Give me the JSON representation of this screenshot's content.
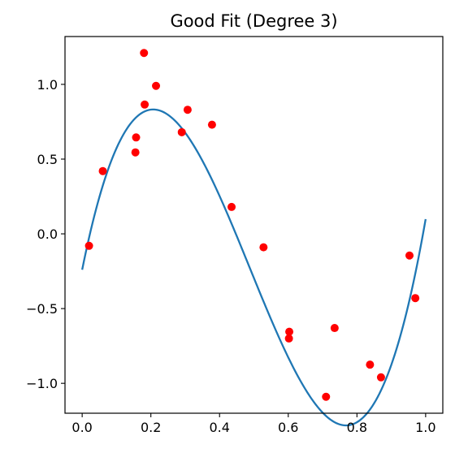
{
  "chart_data": {
    "type": "scatter",
    "title": "Good Fit (Degree 3)",
    "xlabel": "",
    "ylabel": "",
    "xlim": [
      -0.05,
      1.05
    ],
    "ylim": [
      -1.2,
      1.32
    ],
    "x_ticks": [
      0.0,
      0.2,
      0.4,
      0.6,
      0.8,
      1.0
    ],
    "x_tick_labels": [
      "0.0",
      "0.2",
      "0.4",
      "0.6",
      "0.8",
      "1.0"
    ],
    "y_ticks": [
      -1.0,
      -0.5,
      0.0,
      0.5,
      1.0
    ],
    "y_tick_labels": [
      "−1.0",
      "−0.5",
      "0.0",
      "0.5",
      "1.0"
    ],
    "grid": false,
    "series": [
      {
        "kind": "scatter",
        "color": "#ff0000",
        "points": [
          {
            "x": 0.02,
            "y": -0.08
          },
          {
            "x": 0.06,
            "y": 0.42
          },
          {
            "x": 0.155,
            "y": 0.545
          },
          {
            "x": 0.157,
            "y": 0.645
          },
          {
            "x": 0.18,
            "y": 1.21
          },
          {
            "x": 0.182,
            "y": 0.865
          },
          {
            "x": 0.215,
            "y": 0.99
          },
          {
            "x": 0.29,
            "y": 0.68
          },
          {
            "x": 0.307,
            "y": 0.83
          },
          {
            "x": 0.378,
            "y": 0.73
          },
          {
            "x": 0.435,
            "y": 0.18
          },
          {
            "x": 0.528,
            "y": -0.09
          },
          {
            "x": 0.602,
            "y": -0.7
          },
          {
            "x": 0.603,
            "y": -0.655
          },
          {
            "x": 0.71,
            "y": -1.09
          },
          {
            "x": 0.735,
            "y": -0.63
          },
          {
            "x": 0.838,
            "y": -0.875
          },
          {
            "x": 0.87,
            "y": -0.96
          },
          {
            "x": 0.953,
            "y": -0.145
          },
          {
            "x": 0.97,
            "y": -0.43
          }
        ]
      },
      {
        "kind": "line",
        "color": "#1f77b4",
        "function": "cubic",
        "x_range": [
          0.0,
          1.0
        ],
        "coefficients": [
          -0.2399,
          11.3883,
          -34.9497,
          23.8999
        ]
      }
    ]
  }
}
